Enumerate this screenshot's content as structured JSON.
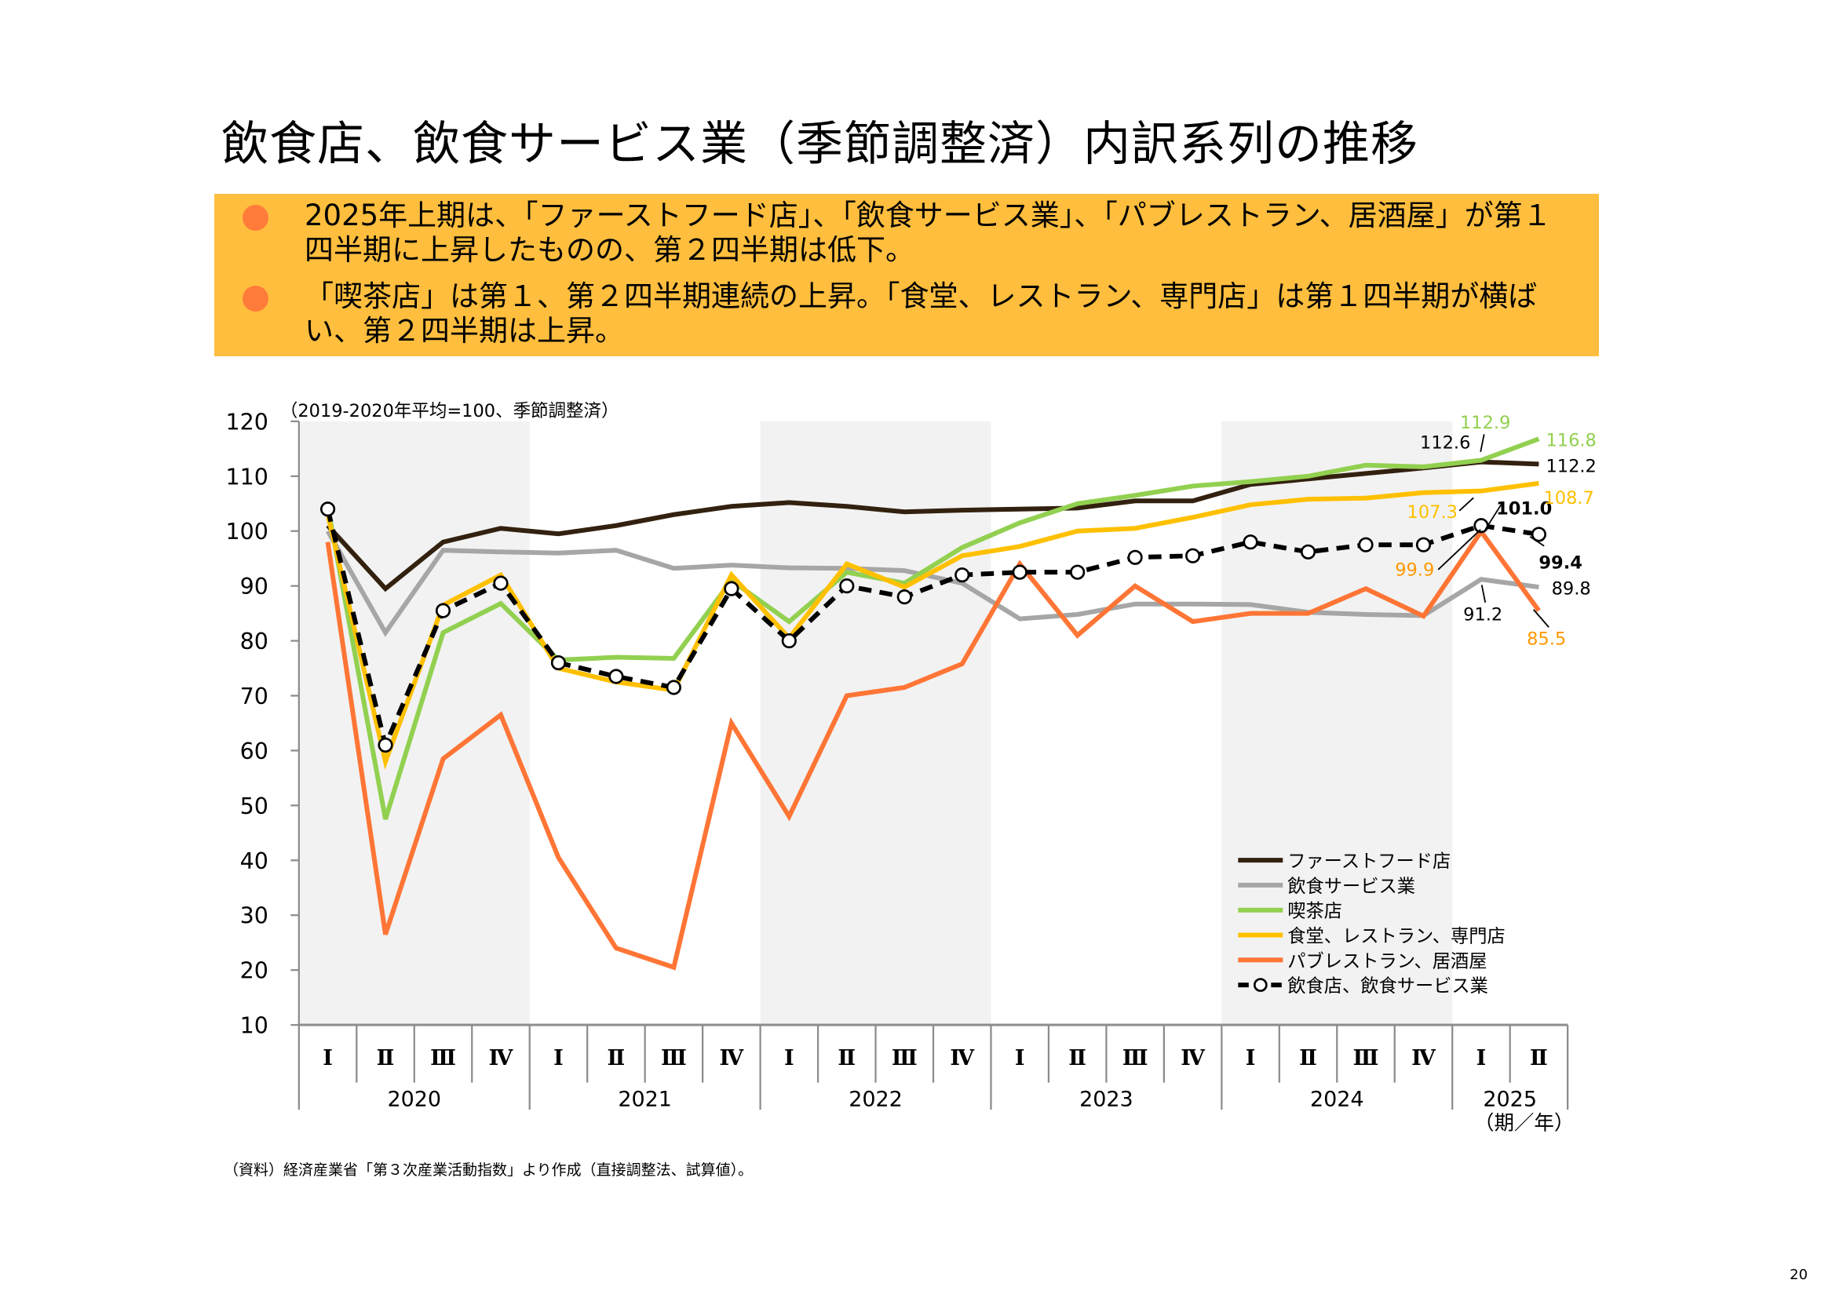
{
  "title": "飲食店、飲食サービス業（季節調整済）内訳系列の推移",
  "summary": [
    "2025年上期は、「ファーストフード店」、「飲食サービス業」、「パブレストラン、居酒屋」が第１四半期に上昇したものの、第２四半期は低下。",
    "「喫茶店」は第１、第２四半期連続の上昇。「食堂、レストラン、専門店」は第１四半期が横ばい、第２四半期は上昇。"
  ],
  "colors": {
    "summary_bg": "#ffbe3e",
    "bullet": "#ff7b3a"
  },
  "source": "（資料）経済産業省「第３次産業活動指数」より作成（直接調整法、試算値）。",
  "page_number": "20",
  "chart_data": {
    "type": "line",
    "unit_note": "（2019-2020年平均=100、季節調整済）",
    "x_axis_note": "（期／年）",
    "ylim": [
      10,
      120
    ],
    "yticks": [
      "120",
      "110",
      "100",
      "90",
      "80",
      "70",
      "60",
      "50",
      "40",
      "30",
      "20",
      "10"
    ],
    "quarters": [
      "Ⅰ",
      "Ⅱ",
      "Ⅲ",
      "Ⅳ",
      "Ⅰ",
      "Ⅱ",
      "Ⅲ",
      "Ⅳ",
      "Ⅰ",
      "Ⅱ",
      "Ⅲ",
      "Ⅳ",
      "Ⅰ",
      "Ⅱ",
      "Ⅲ",
      "Ⅳ",
      "Ⅰ",
      "Ⅱ",
      "Ⅲ",
      "Ⅳ",
      "Ⅰ",
      "Ⅱ"
    ],
    "years": [
      "2020",
      "2021",
      "2022",
      "2023",
      "2024",
      "2025"
    ],
    "shaded_years": [
      "2020",
      "2022",
      "2024"
    ],
    "legend_position": "bottom-right",
    "series": [
      {
        "name": "ファーストフード店",
        "color": "#33210f",
        "style": "solid",
        "values": [
          101,
          89.5,
          98,
          100.5,
          99.5,
          101,
          103,
          104.5,
          105.2,
          104.5,
          103.5,
          103.8,
          104,
          104.2,
          105.5,
          105.5,
          108.5,
          109.5,
          110.5,
          111.5,
          112.6,
          112.2
        ]
      },
      {
        "name": "飲食サービス業",
        "color": "#a6a6a6",
        "style": "solid",
        "values": [
          100,
          81.5,
          96.5,
          96.2,
          96,
          96.5,
          93.2,
          93.8,
          93.3,
          93.2,
          92.8,
          90.5,
          84,
          84.8,
          86.7,
          86.7,
          86.6,
          85.2,
          84.8,
          84.6,
          91.2,
          89.8
        ]
      },
      {
        "name": "喫茶店",
        "color": "#92d050",
        "style": "solid",
        "values": [
          104.5,
          47.5,
          81.5,
          86.8,
          76.5,
          77,
          76.8,
          91,
          83.5,
          92.5,
          90.5,
          97,
          101.5,
          105,
          106.5,
          108.2,
          109,
          110,
          112,
          111.7,
          112.9,
          116.8
        ]
      },
      {
        "name": "食堂、レストラン、専門店",
        "color": "#ffc000",
        "style": "solid",
        "values": [
          103,
          58,
          86.5,
          92,
          75,
          72.5,
          71,
          92,
          80.5,
          94,
          89.8,
          95.5,
          97.2,
          100,
          100.5,
          102.5,
          104.8,
          105.8,
          106,
          107,
          107.3,
          108.7
        ]
      },
      {
        "name": "パブレストラン、居酒屋",
        "color": "#ff7535",
        "style": "solid",
        "values": [
          98,
          26.5,
          58.5,
          66.5,
          40.5,
          24,
          20.5,
          65,
          48,
          70,
          71.5,
          75.8,
          94,
          81,
          90,
          83.5,
          85,
          85,
          89.5,
          84.5,
          99.9,
          85.5
        ]
      },
      {
        "name": "飲食店、飲食サービス業",
        "color": "#000000",
        "style": "dashed-markers",
        "values": [
          104,
          61,
          85.5,
          90.5,
          76,
          73.5,
          71.5,
          89.5,
          80,
          90,
          88,
          92,
          92.5,
          92.5,
          95.2,
          95.5,
          98,
          96.2,
          97.5,
          97.5,
          101.0,
          99.4
        ]
      }
    ],
    "annotations": [
      {
        "text": "112.9",
        "color": "#92d050",
        "bold": false
      },
      {
        "text": "112.6",
        "color": "#000000",
        "bold": false
      },
      {
        "text": "116.8",
        "color": "#92d050",
        "bold": false
      },
      {
        "text": "112.2",
        "color": "#000000",
        "bold": false
      },
      {
        "text": "107.3",
        "color": "#ffc000",
        "bold": false
      },
      {
        "text": "101.0",
        "color": "#000000",
        "bold": true
      },
      {
        "text": "108.7",
        "color": "#ffc000",
        "bold": false
      },
      {
        "text": "99.9",
        "color": "#ff9900",
        "bold": false
      },
      {
        "text": "99.4",
        "color": "#000000",
        "bold": true
      },
      {
        "text": "89.8",
        "color": "#000000",
        "bold": false
      },
      {
        "text": "91.2",
        "color": "#000000",
        "bold": false
      },
      {
        "text": "85.5",
        "color": "#ff9900",
        "bold": false
      }
    ]
  }
}
